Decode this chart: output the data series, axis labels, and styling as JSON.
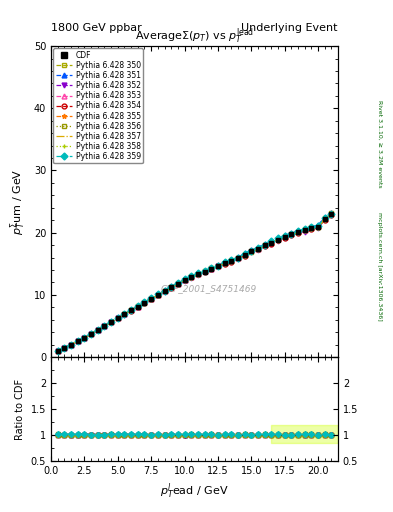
{
  "title_left": "1800 GeV ppbar",
  "title_right": "Underlying Event",
  "plot_title": "Average$\\Sigma(p_T)$ vs $p_T^{\\rm lead}$",
  "xlabel": "$p_T^l$ead / GeV",
  "ylabel_main": "$p_T^{\\Sigma}$um / GeV",
  "ylabel_ratio": "Ratio to CDF",
  "watermark": "CDF_2001_S4751469",
  "rivet_label": "Rivet 3.1.10, ≥ 3.2M events",
  "mcplots_label": "mcplots.cern.ch [arXiv:1306.3436]",
  "xlim": [
    0,
    21.5
  ],
  "ylim_main": [
    0,
    50
  ],
  "ylim_ratio": [
    0.5,
    2.5
  ],
  "x_data": [
    0.5,
    1.0,
    1.5,
    2.0,
    2.5,
    3.0,
    3.5,
    4.0,
    4.5,
    5.0,
    5.5,
    6.0,
    6.5,
    7.0,
    7.5,
    8.0,
    8.5,
    9.0,
    9.5,
    10.0,
    10.5,
    11.0,
    11.5,
    12.0,
    12.5,
    13.0,
    13.5,
    14.0,
    14.5,
    15.0,
    15.5,
    16.0,
    16.5,
    17.0,
    17.5,
    18.0,
    18.5,
    19.0,
    19.5,
    20.0,
    20.5,
    21.0
  ],
  "y_cdf": [
    1.05,
    1.45,
    2.0,
    2.55,
    3.1,
    3.75,
    4.35,
    5.0,
    5.65,
    6.3,
    6.9,
    7.5,
    8.1,
    8.75,
    9.4,
    10.0,
    10.6,
    11.2,
    11.8,
    12.35,
    12.85,
    13.3,
    13.75,
    14.2,
    14.65,
    15.1,
    15.5,
    15.9,
    16.4,
    17.0,
    17.4,
    17.95,
    18.4,
    18.9,
    19.35,
    19.75,
    20.1,
    20.4,
    20.7,
    20.9,
    22.2,
    23.0
  ],
  "series": [
    {
      "label": "Pythia 6.428 350",
      "color": "#aaaa00",
      "linestyle": "--",
      "marker": "s",
      "filled": false
    },
    {
      "label": "Pythia 6.428 351",
      "color": "#0055ff",
      "linestyle": "--",
      "marker": "^",
      "filled": true
    },
    {
      "label": "Pythia 6.428 352",
      "color": "#8800cc",
      "linestyle": "--",
      "marker": "v",
      "filled": true
    },
    {
      "label": "Pythia 6.428 353",
      "color": "#ff44aa",
      "linestyle": "--",
      "marker": "^",
      "filled": false
    },
    {
      "label": "Pythia 6.428 354",
      "color": "#cc0000",
      "linestyle": "--",
      "marker": "o",
      "filled": false
    },
    {
      "label": "Pythia 6.428 355",
      "color": "#ff7700",
      "linestyle": "--",
      "marker": "*",
      "filled": true
    },
    {
      "label": "Pythia 6.428 356",
      "color": "#999900",
      "linestyle": ":",
      "marker": "s",
      "filled": false
    },
    {
      "label": "Pythia 6.428 357",
      "color": "#ddaa00",
      "linestyle": "-.",
      "marker": null,
      "filled": false
    },
    {
      "label": "Pythia 6.428 358",
      "color": "#aacc00",
      "linestyle": ":",
      "marker": "+",
      "filled": false
    },
    {
      "label": "Pythia 6.428 359",
      "color": "#00bbbb",
      "linestyle": "--",
      "marker": "D",
      "filled": true
    }
  ],
  "mc_offsets": [
    0.005,
    0.012,
    -0.008,
    0.004,
    -0.003,
    0.007,
    0.002,
    0.001,
    -0.002,
    0.009
  ],
  "background_color": "#ffffff"
}
